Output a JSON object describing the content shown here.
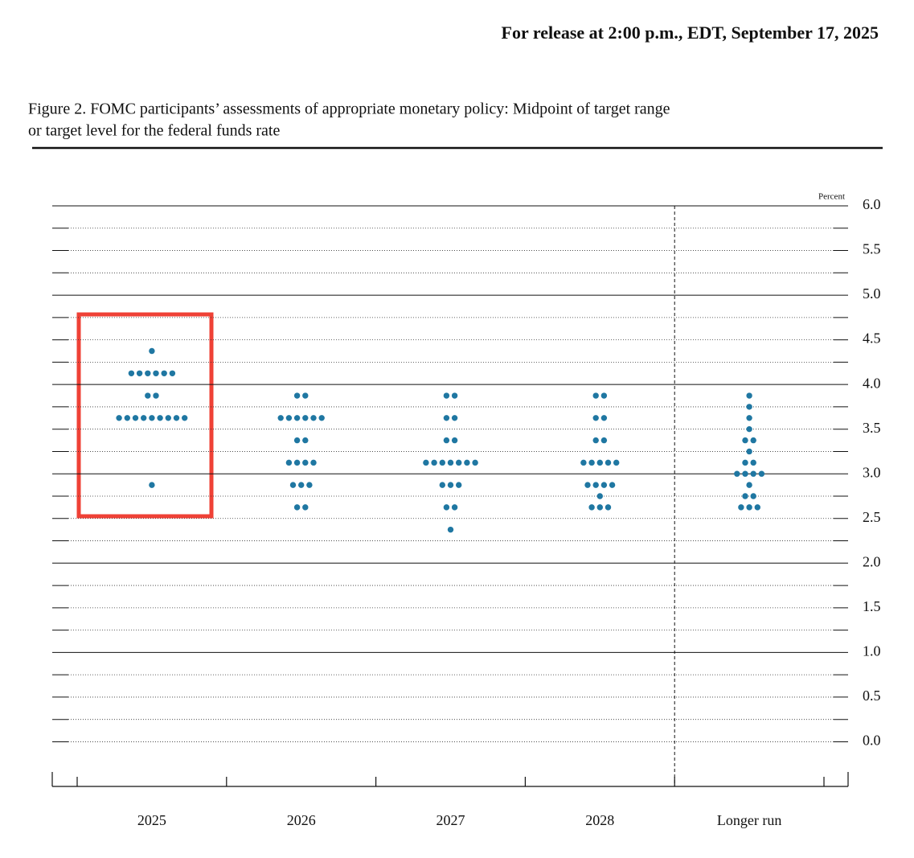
{
  "release_note": "For release at 2:00 p.m., EDT, September 17, 2025",
  "chart_data": {
    "type": "dot-plot",
    "title": [
      "Figure 2. FOMC participants’ assessments of appropriate monetary policy: Midpoint of target range",
      "or target level for the federal funds rate"
    ],
    "y_unit": "Percent",
    "color": "#1f77a2",
    "categories": [
      "2025",
      "2026",
      "2027",
      "2028",
      "Longer run"
    ],
    "dots": [
      {
        "rates": [
          4.375,
          4.125,
          3.875,
          3.625,
          2.875
        ],
        "counts": [
          1,
          6,
          2,
          9,
          1
        ]
      },
      {
        "rates": [
          3.875,
          3.625,
          3.375,
          3.125,
          2.875,
          2.625
        ],
        "counts": [
          2,
          6,
          2,
          4,
          3,
          2
        ]
      },
      {
        "rates": [
          3.875,
          3.625,
          3.375,
          3.125,
          2.875,
          2.625,
          2.375
        ],
        "counts": [
          2,
          2,
          2,
          7,
          3,
          2,
          1
        ]
      },
      {
        "rates": [
          3.875,
          3.625,
          3.375,
          3.125,
          2.875,
          2.75,
          2.625
        ],
        "counts": [
          2,
          2,
          2,
          5,
          4,
          1,
          3
        ]
      },
      {
        "rates": [
          3.875,
          3.75,
          3.625,
          3.5,
          3.375,
          3.25,
          3.125,
          3.0,
          2.875,
          2.75,
          2.625
        ],
        "counts": [
          1,
          1,
          1,
          1,
          2,
          1,
          2,
          4,
          1,
          2,
          3
        ]
      }
    ],
    "ylim": [
      -0.5,
      6
    ],
    "yticks": [
      {
        "value": 0,
        "label": "0.0"
      },
      0.5,
      {
        "value": 1,
        "label": "1.0"
      },
      1.5,
      {
        "value": 2,
        "label": "2.0"
      },
      2.5,
      {
        "value": 3,
        "label": "3.0"
      },
      3.5,
      {
        "value": 4,
        "label": "4.0"
      },
      4.5,
      {
        "value": 5,
        "label": "5.0"
      },
      5.5,
      {
        "value": 6,
        "label": "6.0"
      }
    ],
    "solid_gridlines": [
      1,
      2,
      3,
      4,
      5,
      6
    ]
  }
}
